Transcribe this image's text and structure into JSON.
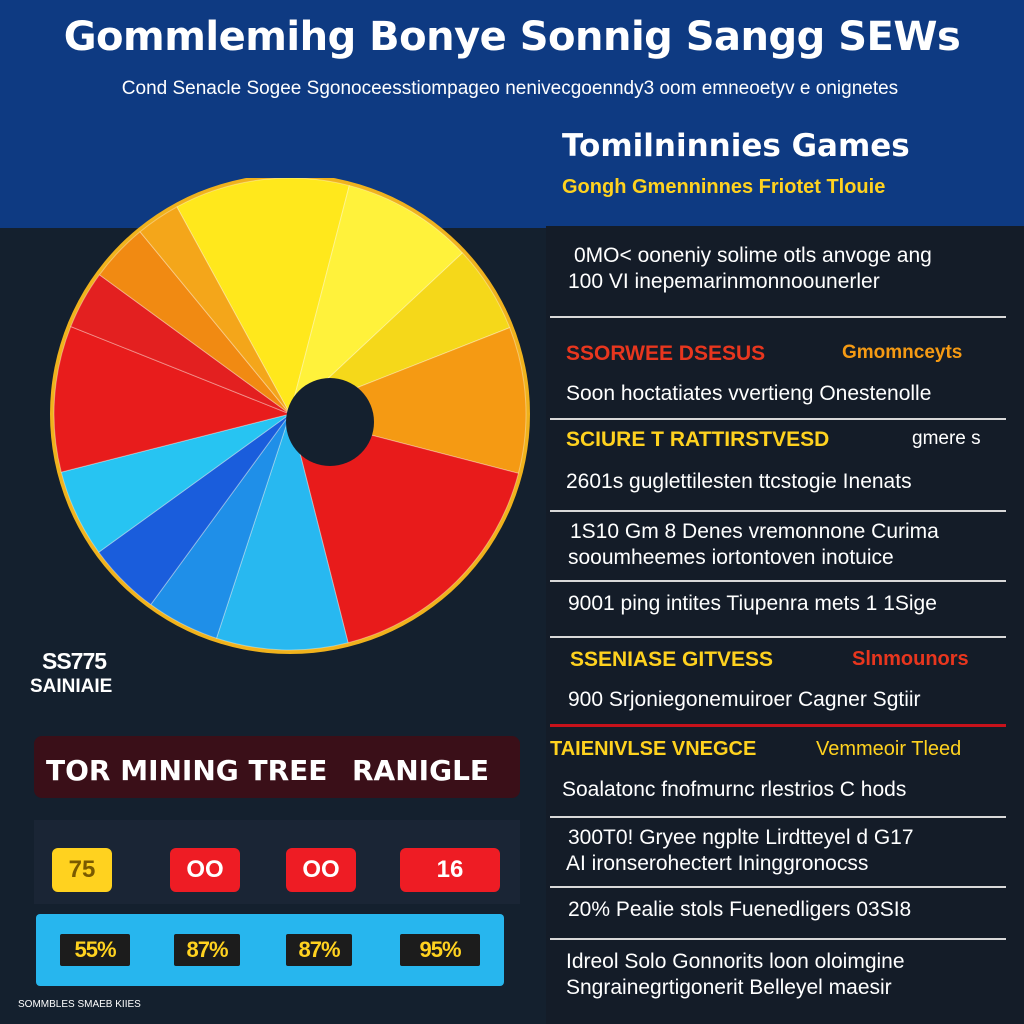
{
  "header": {
    "title": "Gommlemihg Bonye Sonnig Sangg SEWs",
    "subtitle": "Cond Senacle Sogee Sgonoceesstiompageo nenivecgoenndy3 oom emneoetyv e onignetes"
  },
  "right_header": {
    "heading": "Tomilninnies  Games",
    "subheading": "Gongh Gmenninnes Friotet Tlouie"
  },
  "right_list": {
    "block1_line1": "0MO< ooneniy solime otls anvoge ang",
    "block1_line2": "100 VI inepemarinmonnoounerler",
    "section1_head": "SSORWEE DSESUS",
    "section1_tag": "Gmomnceyts",
    "line3": "Soon hoctatiates vvertieng Onestenolle",
    "section2_head": "SCIURE T RATTIRSTVESD",
    "section2_tag": "gmere s",
    "line4": "2601s guglettilesten ttcstogie Inenats",
    "line5a": "1S10 Gm 8 Denes vremonnone Curima",
    "line5b": "sooumheemes iortontoven inotuice",
    "line6": "9001 ping intites Tiupenra mets  1 1Sige",
    "section3_head": "SSENIASE GITVESS",
    "section3_tag": "Slnmounors",
    "line7": "900 Srjoniegonemuiroer Cagner Sgtiir",
    "section4_head": "TAIENIVLSE VNEGCE",
    "section4_tag": "Vemmeoir Tleed",
    "line8": "Soalatonc fnofmurnc rlestrios  C hods",
    "line9a": "300T0! Gryee ngplte Lirdtteyel d  G17",
    "line9b": "AI ironserohectert Ininggronocss",
    "line10": "20% Pealie stols Fuenedligers 03SI8",
    "line11a": "Idreol Solo Gonnorits loon oloimgine",
    "line11b": "Sngrainegrtigonerit Belleyel maesir"
  },
  "pie_side": {
    "value": "SS775",
    "label": "SAINIAIE"
  },
  "table": {
    "head_left": "TOR MINING TREE",
    "head_right": "RANIGLE",
    "badges": [
      "75",
      "OO",
      "OO",
      "16"
    ],
    "stats": [
      "55%",
      "87%",
      "87%",
      "95%"
    ]
  },
  "footnote": "SOMMBLES SMAEB KIIES",
  "colors": {
    "header_blue": "#0e3a82",
    "background": "#14202e",
    "accent_yellow": "#ffd21f",
    "accent_red": "#e01b1b",
    "accent_orange": "#f39a12",
    "accent_blue": "#2bb8f0"
  },
  "chart_data": {
    "type": "pie",
    "donut_hole": true,
    "slices": [
      {
        "color": "#ffe81c",
        "value": 12
      },
      {
        "color": "#fff23b",
        "value": 9
      },
      {
        "color": "#f5d81a",
        "value": 6
      },
      {
        "color": "#f59a13",
        "value": 10
      },
      {
        "color": "#e81b1b",
        "value": 17
      },
      {
        "color": "#28b8f0",
        "value": 9
      },
      {
        "color": "#1f8fe8",
        "value": 5
      },
      {
        "color": "#1a5ddc",
        "value": 5
      },
      {
        "color": "#27c4f2",
        "value": 6
      },
      {
        "color": "#e81c1c",
        "value": 10
      },
      {
        "color": "#e32020",
        "value": 4
      },
      {
        "color": "#f18a12",
        "value": 4
      },
      {
        "color": "#f4a61a",
        "value": 3
      }
    ]
  }
}
